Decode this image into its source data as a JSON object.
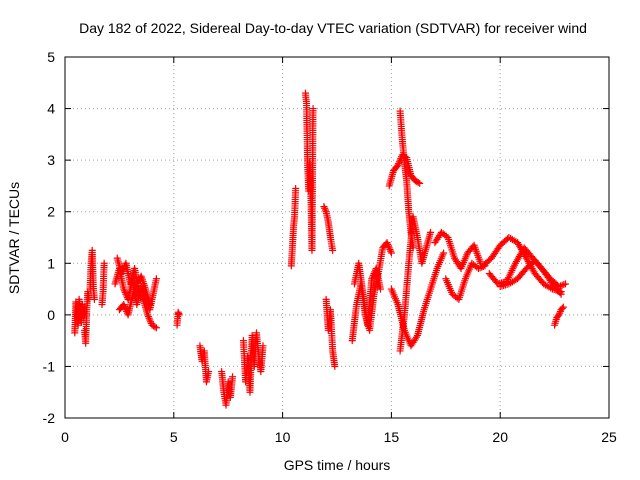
{
  "chart_data": {
    "type": "scatter",
    "title": "Day 182 of 2022, Sidereal Day-to-day VTEC variation (SDTVAR) for receiver wind",
    "xlabel": "GPS time / hours",
    "ylabel": "SDTVAR / TECUs",
    "xlim": [
      0,
      25
    ],
    "ylim": [
      -2,
      5
    ],
    "xticks": [
      "0",
      "5",
      "10",
      "15",
      "20",
      "25"
    ],
    "yticks": [
      "-2",
      "-1",
      "0",
      "1",
      "2",
      "3",
      "4",
      "5"
    ],
    "grid": true,
    "marker": "+",
    "color": "#ff0000",
    "series": [
      {
        "name": "SDTVAR",
        "segments": [
          {
            "x": [
              0.45,
              0.5,
              0.55,
              0.6,
              0.65,
              0.7,
              0.75,
              0.8,
              0.85,
              0.9
            ],
            "y": [
              -0.35,
              0.25,
              0.1,
              -0.2,
              0.3,
              0.0,
              -0.15,
              0.2,
              -0.05,
              0.1
            ]
          },
          {
            "x": [
              0.9,
              0.95,
              1.0,
              1.05,
              1.1
            ],
            "y": [
              -0.3,
              -0.55,
              0.1,
              0.45,
              0.3
            ]
          },
          {
            "x": [
              1.15,
              1.2,
              1.25,
              1.3,
              1.35
            ],
            "y": [
              0.5,
              1.0,
              1.25,
              0.55,
              0.3
            ]
          },
          {
            "x": [
              1.7,
              1.75,
              1.8
            ],
            "y": [
              0.2,
              0.45,
              1.0
            ]
          },
          {
            "x": [
              2.3,
              2.5,
              2.7,
              2.9,
              3.1,
              3.3,
              3.5,
              3.7,
              3.9,
              4.1,
              4.2
            ],
            "y": [
              0.6,
              0.9,
              0.5,
              0.3,
              0.7,
              0.2,
              0.55,
              0.35,
              0.1,
              0.5,
              0.7
            ]
          },
          {
            "x": [
              2.4,
              2.6,
              2.8,
              3.0,
              3.2,
              3.4,
              3.6,
              3.8,
              4.0,
              4.2
            ],
            "y": [
              1.1,
              0.8,
              1.0,
              0.6,
              0.9,
              0.4,
              0.3,
              0.0,
              -0.2,
              -0.25
            ]
          },
          {
            "x": [
              2.5,
              2.7,
              2.9,
              3.1,
              3.3,
              3.5,
              3.7,
              3.9
            ],
            "y": [
              0.1,
              0.2,
              0.0,
              0.35,
              0.6,
              0.75,
              0.5,
              0.2
            ]
          },
          {
            "x": [
              5.15,
              5.2,
              5.25
            ],
            "y": [
              -0.2,
              0.05,
              0.0
            ]
          },
          {
            "x": [
              6.2,
              6.3,
              6.4,
              6.5,
              6.6
            ],
            "y": [
              -0.6,
              -0.9,
              -0.7,
              -1.3,
              -1.1
            ]
          },
          {
            "x": [
              7.2,
              7.3,
              7.4,
              7.5,
              7.6,
              7.7
            ],
            "y": [
              -1.1,
              -1.5,
              -1.75,
              -1.3,
              -1.6,
              -1.2
            ]
          },
          {
            "x": [
              8.2,
              8.3,
              8.4,
              8.5,
              8.6,
              8.7,
              8.8,
              8.9,
              9.0,
              9.1
            ],
            "y": [
              -0.5,
              -1.3,
              -0.8,
              -1.5,
              -0.4,
              -1.0,
              -0.35,
              -0.8,
              -1.1,
              -0.6
            ]
          },
          {
            "x": [
              10.4,
              10.45,
              10.5,
              10.55,
              10.6
            ],
            "y": [
              0.95,
              1.3,
              1.7,
              1.9,
              2.45
            ]
          },
          {
            "x": [
              11.05,
              11.1,
              11.15,
              11.2,
              11.25,
              11.3,
              11.35,
              11.4
            ],
            "y": [
              4.3,
              4.1,
              2.9,
              2.4,
              2.95,
              2.3,
              1.25,
              4.0
            ]
          },
          {
            "x": [
              11.9,
              12.0,
              12.1,
              12.2,
              12.3
            ],
            "y": [
              2.1,
              2.0,
              1.8,
              1.5,
              1.25
            ]
          },
          {
            "x": [
              12.0,
              12.1,
              12.2,
              12.3,
              12.4
            ],
            "y": [
              0.3,
              -0.3,
              0.1,
              -0.7,
              -1.0
            ]
          },
          {
            "x": [
              13.2,
              13.4,
              13.6,
              13.8,
              14.0,
              14.2,
              14.4,
              14.6,
              14.8,
              15.0
            ],
            "y": [
              -0.5,
              0.2,
              0.6,
              0.0,
              -0.3,
              0.4,
              0.8,
              1.3,
              1.4,
              1.2
            ]
          },
          {
            "x": [
              13.3,
              13.5,
              13.7,
              13.9,
              14.1,
              14.3,
              14.5
            ],
            "y": [
              0.6,
              1.0,
              0.4,
              -0.2,
              0.7,
              0.9,
              0.5
            ]
          },
          {
            "x": [
              14.9,
              15.1,
              15.3,
              15.5,
              15.7,
              15.9,
              16.1,
              16.3
            ],
            "y": [
              2.5,
              2.8,
              2.9,
              3.1,
              3.05,
              2.7,
              2.6,
              2.55
            ]
          },
          {
            "x": [
              15.4,
              15.5,
              15.6,
              15.7,
              15.8,
              15.9,
              16.0
            ],
            "y": [
              3.95,
              3.4,
              2.95,
              2.6,
              2.0,
              1.6,
              1.3
            ]
          },
          {
            "x": [
              15.0,
              15.3,
              15.6,
              15.9,
              16.2,
              16.5,
              16.8,
              17.1,
              17.4
            ],
            "y": [
              0.5,
              0.2,
              -0.3,
              -0.6,
              -0.4,
              0.1,
              0.5,
              0.9,
              1.2
            ]
          },
          {
            "x": [
              15.4,
              15.6,
              15.8,
              16.0,
              16.2,
              16.4,
              16.6,
              16.8
            ],
            "y": [
              -0.7,
              0.0,
              1.0,
              1.9,
              1.5,
              1.0,
              1.3,
              1.6
            ]
          },
          {
            "x": [
              17.0,
              17.3,
              17.6,
              17.9,
              18.2,
              18.5,
              18.8,
              19.1
            ],
            "y": [
              1.4,
              1.6,
              1.5,
              1.1,
              0.9,
              1.2,
              1.35,
              1.0
            ]
          },
          {
            "x": [
              17.5,
              17.8,
              18.1,
              18.4,
              18.7,
              19.0,
              19.3
            ],
            "y": [
              0.7,
              0.4,
              0.3,
              0.7,
              1.0,
              0.9,
              0.95
            ]
          },
          {
            "x": [
              19.2,
              19.6,
              20.0,
              20.4,
              20.8,
              21.2,
              21.6,
              22.0,
              22.4,
              22.8
            ],
            "y": [
              0.95,
              1.1,
              1.35,
              1.5,
              1.4,
              1.1,
              0.8,
              0.6,
              0.5,
              0.45
            ]
          },
          {
            "x": [
              19.5,
              19.9,
              20.3,
              20.7,
              21.1,
              21.5,
              21.9,
              22.3,
              22.7,
              23.0
            ],
            "y": [
              0.8,
              0.6,
              0.65,
              1.0,
              1.3,
              1.1,
              0.9,
              0.7,
              0.55,
              0.6
            ]
          },
          {
            "x": [
              20.0,
              20.4,
              20.8,
              21.2,
              21.6,
              22.0,
              22.4,
              22.8
            ],
            "y": [
              0.55,
              0.6,
              0.7,
              0.9,
              1.05,
              0.85,
              0.6,
              0.4
            ]
          },
          {
            "x": [
              22.5,
              22.6,
              22.7,
              22.8,
              22.9
            ],
            "y": [
              -0.2,
              -0.05,
              0.0,
              0.1,
              0.15
            ]
          }
        ]
      }
    ]
  }
}
